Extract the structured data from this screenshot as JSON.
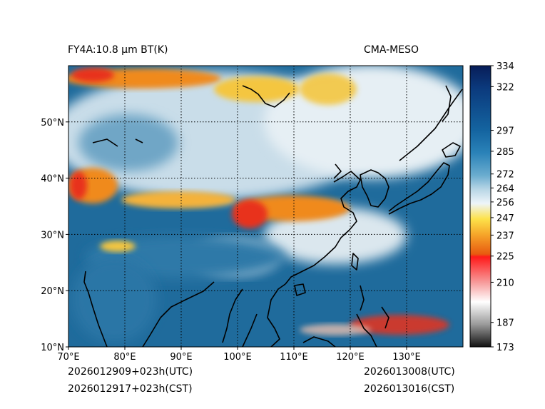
{
  "header": {
    "left_title": "FY4A:10.8 µm BT(K)",
    "right_title": "CMA-MESO"
  },
  "footer": {
    "init_utc": "2026012909+023h(UTC)",
    "init_cst": "2026012917+023h(CST)",
    "valid_utc": "2026013008(UTC)",
    "valid_cst": "2026013016(CST)"
  },
  "map": {
    "lon_range": [
      70,
      140
    ],
    "lat_range": [
      10,
      60
    ],
    "lon_ticks": [
      "70°E",
      "80°E",
      "90°E",
      "100°E",
      "110°E",
      "120°E",
      "130°E"
    ],
    "lat_ticks": [
      "10°N",
      "20°N",
      "30°N",
      "40°N",
      "50°N"
    ],
    "lon_tick_values": [
      70,
      80,
      90,
      100,
      110,
      120,
      130
    ],
    "lat_tick_values": [
      10,
      20,
      30,
      40,
      50
    ],
    "colors": {
      "ocean_warm": "#1f6b9c",
      "land_mid": "#4d92bd",
      "cloud_pale": "#dce8ef",
      "cloud_white": "#f4f7f9",
      "cold_orange": "#f08a1e",
      "cold_yellow": "#f4c640",
      "cold_red": "#e8301c",
      "coast": "#000000"
    }
  },
  "colorbar": {
    "min": 173,
    "max": 334,
    "tick_labels": [
      "334",
      "322",
      "297",
      "285",
      "272",
      "264",
      "256",
      "247",
      "237",
      "225",
      "210",
      "187",
      "173"
    ],
    "tick_values": [
      334,
      322,
      297,
      285,
      272,
      264,
      256,
      247,
      237,
      225,
      210,
      187,
      173
    ]
  }
}
